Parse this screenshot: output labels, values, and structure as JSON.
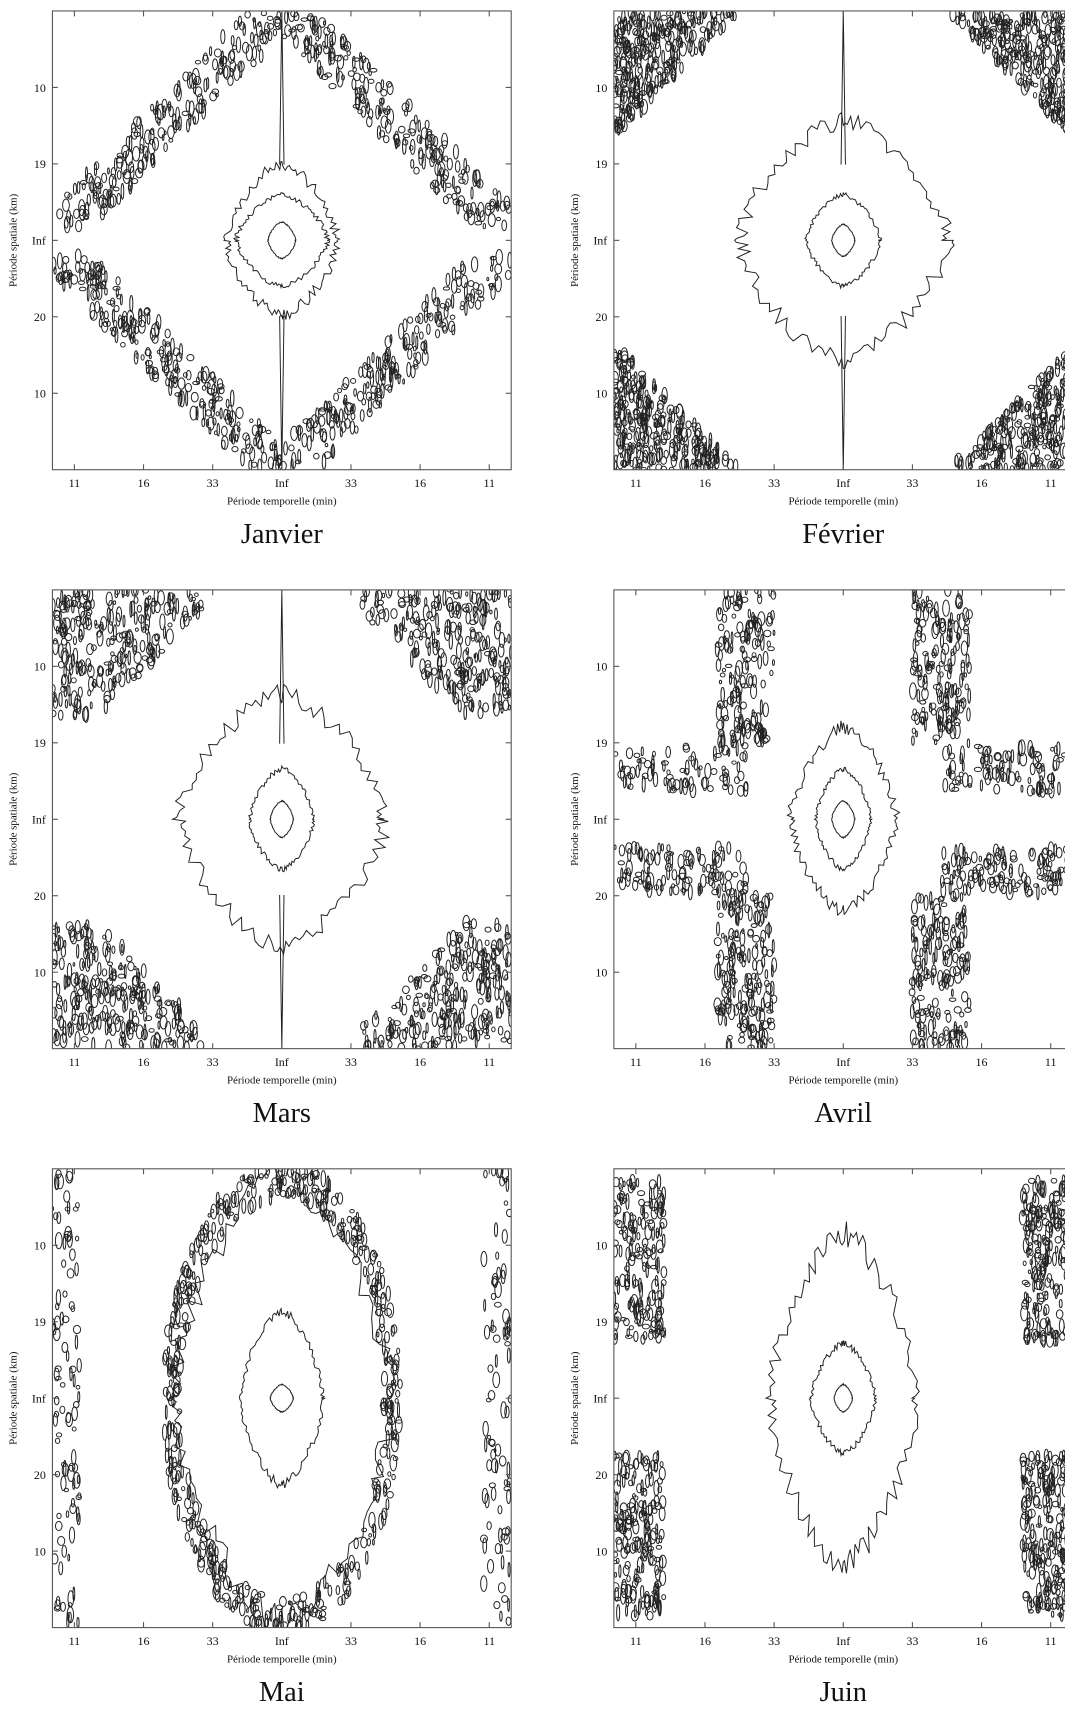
{
  "chart_data": [
    {
      "type": "contour",
      "title": "Janvier",
      "xlabel": "Période temporelle (min)",
      "ylabel": "Période spatiale (km)",
      "xcategories": [
        "11",
        "16",
        "33",
        "Inf",
        "33",
        "16",
        "11"
      ],
      "ycategories": [
        "10",
        "20",
        "Inf",
        "19",
        "10"
      ]
    },
    {
      "type": "contour",
      "title": "Février",
      "xlabel": "Période temporelle (min)",
      "ylabel": "Période spatiale (km)",
      "xcategories": [
        "11",
        "16",
        "33",
        "Inf",
        "33",
        "16",
        "11"
      ],
      "ycategories": [
        "10",
        "20",
        "Inf",
        "19",
        "10"
      ]
    },
    {
      "type": "contour",
      "title": "Mars",
      "xlabel": "Période temporelle (min)",
      "ylabel": "Période spatiale (km)",
      "xcategories": [
        "11",
        "16",
        "33",
        "Inf",
        "33",
        "16",
        "11"
      ],
      "ycategories": [
        "10",
        "20",
        "Inf",
        "19",
        "10"
      ]
    },
    {
      "type": "contour",
      "title": "Avril",
      "xlabel": "Période temporelle (min)",
      "ylabel": "Période spatiale (km)",
      "xcategories": [
        "11",
        "16",
        "33",
        "Inf",
        "33",
        "16",
        "11"
      ],
      "ycategories": [
        "10",
        "20",
        "Inf",
        "19",
        "10"
      ]
    },
    {
      "type": "contour",
      "title": "Mai",
      "xlabel": "Période temporelle (min)",
      "ylabel": "Période spatiale (km)",
      "xcategories": [
        "11",
        "16",
        "33",
        "Inf",
        "33",
        "16",
        "11"
      ],
      "ycategories": [
        "10",
        "20",
        "Inf",
        "19",
        "10"
      ]
    },
    {
      "type": "contour",
      "title": "Juin",
      "xlabel": "Période temporelle (min)",
      "ylabel": "Période spatiale (km)",
      "xcategories": [
        "11",
        "16",
        "33",
        "Inf",
        "33",
        "16",
        "11"
      ],
      "ycategories": [
        "10",
        "20",
        "Inf",
        "19",
        "10"
      ]
    }
  ]
}
